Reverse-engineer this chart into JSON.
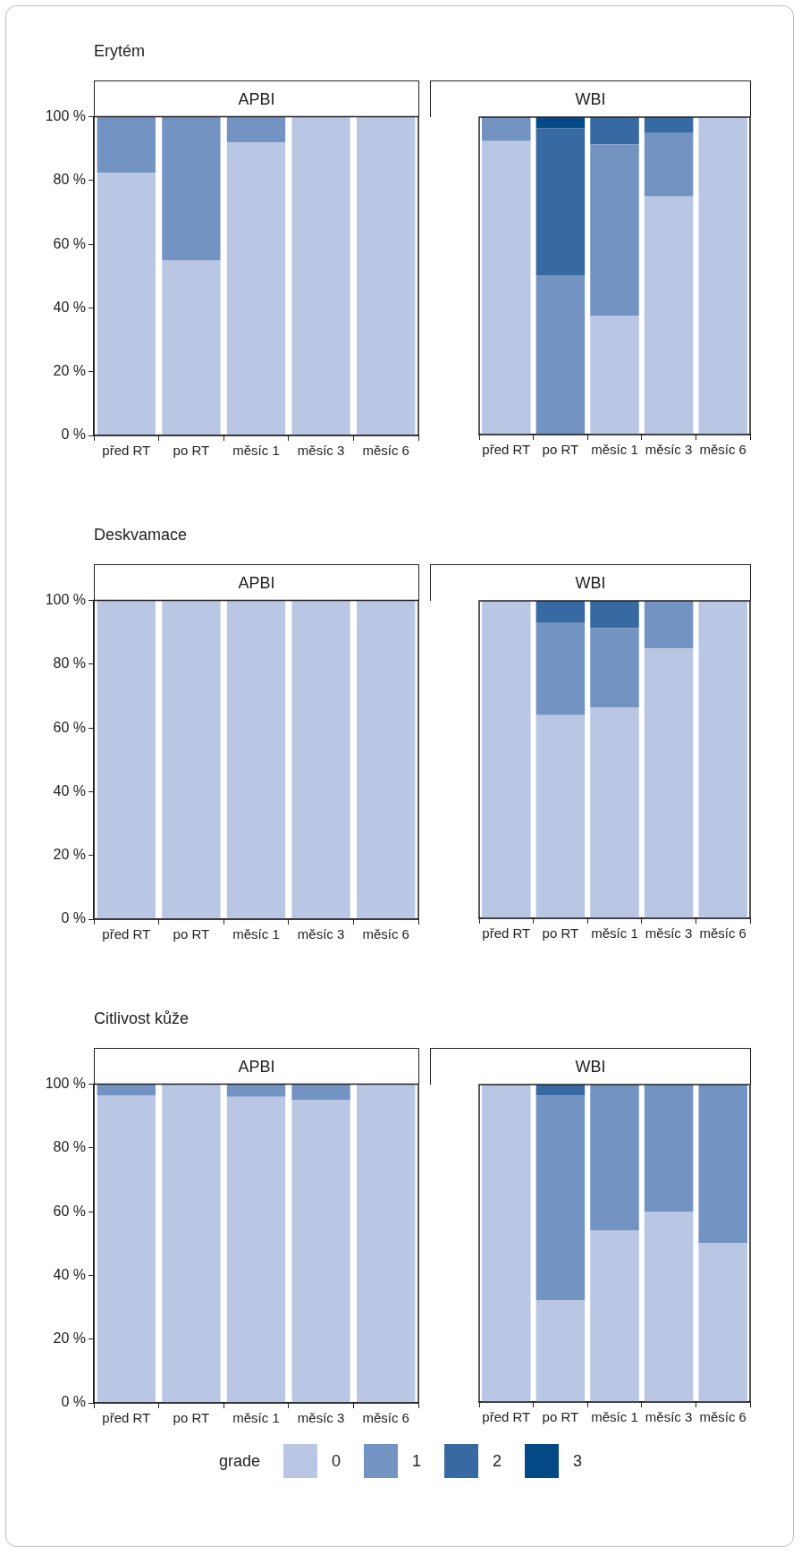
{
  "chart_data": [
    {
      "type": "bar",
      "title": "APBI",
      "annotations": [
        "Erytém"
      ],
      "stacked": true,
      "categories": [
        "před RT",
        "po RT",
        "měsíc 1",
        "měsíc 3",
        "měsíc 6"
      ],
      "ylim": [
        0,
        100
      ],
      "yticks": [
        {
          "value": 0,
          "label": "0 %"
        },
        {
          "value": 20,
          "label": "20 %"
        },
        {
          "value": 40,
          "label": "40 %"
        },
        {
          "value": 60,
          "label": "60 %"
        },
        {
          "value": 80,
          "label": "80 %"
        },
        {
          "value": 100,
          "label": "100 %"
        }
      ],
      "series": [
        {
          "color": "#b9c7e4",
          "values": [
            82.5,
            55,
            92,
            100,
            100
          ]
        },
        {
          "color": "#7393c2",
          "values": [
            17.5,
            45,
            8,
            0,
            0
          ]
        },
        {
          "color": "#3769a3",
          "values": [
            0,
            0,
            0,
            0,
            0
          ]
        },
        {
          "color": "#044a86",
          "values": [
            0,
            0,
            0,
            0,
            0
          ]
        }
      ]
    },
    {
      "type": "bar",
      "title": "WBI",
      "stacked": true,
      "tick_labels": "x",
      "categories": [
        "před RT",
        "po RT",
        "měsíc 1",
        "měsíc 3",
        "měsíc 6"
      ],
      "ylim": [
        0,
        100
      ],
      "series": [
        {
          "color": "#b9c7e4",
          "values": [
            92.5,
            0,
            37.5,
            75,
            100
          ]
        },
        {
          "color": "#7393c2",
          "values": [
            7.5,
            50,
            54,
            20,
            0
          ]
        },
        {
          "color": "#3769a3",
          "values": [
            0,
            46.5,
            8.5,
            5,
            0
          ]
        },
        {
          "color": "#044a86",
          "values": [
            0,
            3.5,
            0,
            0,
            0
          ]
        }
      ]
    },
    {
      "type": "bar",
      "title": "APBI",
      "annotations": [
        "Deskvamace"
      ],
      "stacked": true,
      "categories": [
        "před RT",
        "po RT",
        "měsíc 1",
        "měsíc 3",
        "měsíc 6"
      ],
      "ylim": [
        0,
        100
      ],
      "yticks": [
        {
          "value": 0,
          "label": "0 %"
        },
        {
          "value": 20,
          "label": "20 %"
        },
        {
          "value": 40,
          "label": "40 %"
        },
        {
          "value": 60,
          "label": "60 %"
        },
        {
          "value": 80,
          "label": "80 %"
        },
        {
          "value": 100,
          "label": "100 %"
        }
      ],
      "series": [
        {
          "color": "#b9c7e4",
          "values": [
            100,
            100,
            100,
            100,
            100
          ]
        },
        {
          "color": "#7393c2",
          "values": [
            0,
            0,
            0,
            0,
            0
          ]
        },
        {
          "color": "#3769a3",
          "values": [
            0,
            0,
            0,
            0,
            0
          ]
        },
        {
          "color": "#044a86",
          "values": [
            0,
            0,
            0,
            0,
            0
          ]
        }
      ]
    },
    {
      "type": "bar",
      "title": "WBI",
      "stacked": true,
      "tick_labels": "x",
      "categories": [
        "před RT",
        "po RT",
        "měsíc 1",
        "měsíc 3",
        "měsíc 6"
      ],
      "ylim": [
        0,
        100
      ],
      "series": [
        {
          "color": "#b9c7e4",
          "values": [
            100,
            64,
            66.5,
            85,
            100
          ]
        },
        {
          "color": "#7393c2",
          "values": [
            0,
            29,
            25,
            15,
            0
          ]
        },
        {
          "color": "#3769a3",
          "values": [
            0,
            7,
            8.5,
            0,
            0
          ]
        },
        {
          "color": "#044a86",
          "values": [
            0,
            0,
            0,
            0,
            0
          ]
        }
      ]
    },
    {
      "type": "bar",
      "title": "APBI",
      "annotations": [
        "Citlivost kůže"
      ],
      "stacked": true,
      "categories": [
        "před RT",
        "po RT",
        "měsíc 1",
        "měsíc 3",
        "měsíc 6"
      ],
      "ylim": [
        0,
        100
      ],
      "yticks": [
        {
          "value": 0,
          "label": "0 %"
        },
        {
          "value": 20,
          "label": "20 %"
        },
        {
          "value": 40,
          "label": "40 %"
        },
        {
          "value": 60,
          "label": "60 %"
        },
        {
          "value": 80,
          "label": "80 %"
        },
        {
          "value": 100,
          "label": "100 %"
        }
      ],
      "series": [
        {
          "color": "#b9c7e4",
          "values": [
            96.5,
            100,
            96,
            95,
            100
          ]
        },
        {
          "color": "#7393c2",
          "values": [
            3.5,
            0,
            4,
            5,
            0
          ]
        },
        {
          "color": "#3769a3",
          "values": [
            0,
            0,
            0,
            0,
            0
          ]
        },
        {
          "color": "#044a86",
          "values": [
            0,
            0,
            0,
            0,
            0
          ]
        }
      ]
    },
    {
      "type": "bar",
      "title": "WBI",
      "stacked": true,
      "tick_labels": "x",
      "legend": "bottom",
      "legend_title": "grade",
      "categories": [
        "před RT",
        "po RT",
        "měsíc 1",
        "měsíc 3",
        "měsíc 6"
      ],
      "ylim": [
        0,
        100
      ],
      "series": [
        {
          "name": "0",
          "color": "#b9c7e4",
          "values": [
            100,
            32,
            54,
            60,
            50
          ]
        },
        {
          "name": "1",
          "color": "#7393c2",
          "values": [
            0,
            64.5,
            46,
            40,
            50
          ]
        },
        {
          "name": "2",
          "color": "#3769a3",
          "values": [
            0,
            3.5,
            0,
            0,
            0
          ]
        },
        {
          "name": "3",
          "color": "#044a86",
          "values": [
            0,
            0,
            0,
            0,
            0
          ]
        }
      ]
    }
  ]
}
